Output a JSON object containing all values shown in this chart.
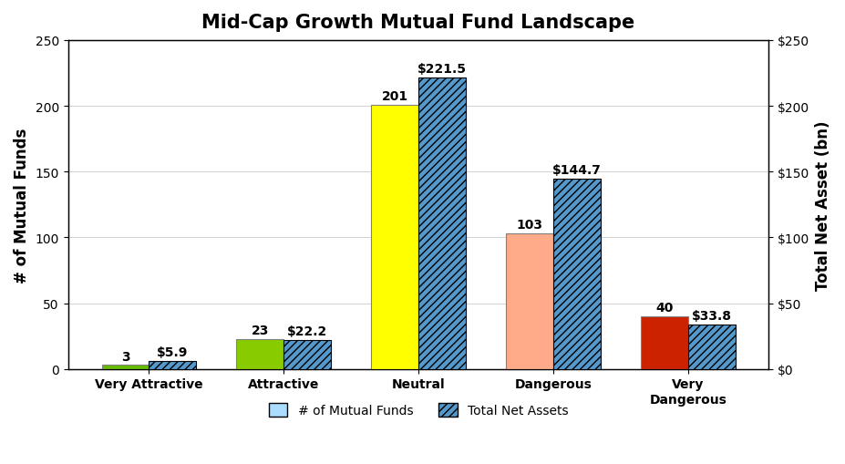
{
  "title": "Mid-Cap Growth Mutual Fund Landscape",
  "categories": [
    "Very Attractive",
    "Attractive",
    "Neutral",
    "Dangerous",
    "Very\nDangerous"
  ],
  "num_funds": [
    3,
    23,
    201,
    103,
    40
  ],
  "total_assets": [
    5.9,
    22.2,
    221.5,
    144.7,
    33.8
  ],
  "bar_colors": [
    "#66bb00",
    "#88cc00",
    "#ffff00",
    "#ffaa88",
    "#cc2200"
  ],
  "hatch_color": "#000000",
  "left_ylim": [
    0,
    250
  ],
  "right_ylim": [
    0,
    250
  ],
  "left_yticks": [
    0,
    50,
    100,
    150,
    200,
    250
  ],
  "right_yticks": [
    0,
    50,
    100,
    150,
    200,
    250
  ],
  "right_yticklabels": [
    "$0",
    "$50",
    "$100",
    "$150",
    "$200",
    "$250"
  ],
  "ylabel_left": "# of Mutual Funds",
  "ylabel_right": "Total Net Asset (bn)",
  "legend_labels": [
    "# of Mutual Funds",
    "Total Net Assets"
  ],
  "legend_colors": [
    "#aaddff",
    "#000000"
  ],
  "bar_width": 0.35,
  "title_fontsize": 15,
  "axis_label_fontsize": 12,
  "tick_fontsize": 10,
  "annotation_fontsize": 10,
  "bg_color": "#ffffff"
}
